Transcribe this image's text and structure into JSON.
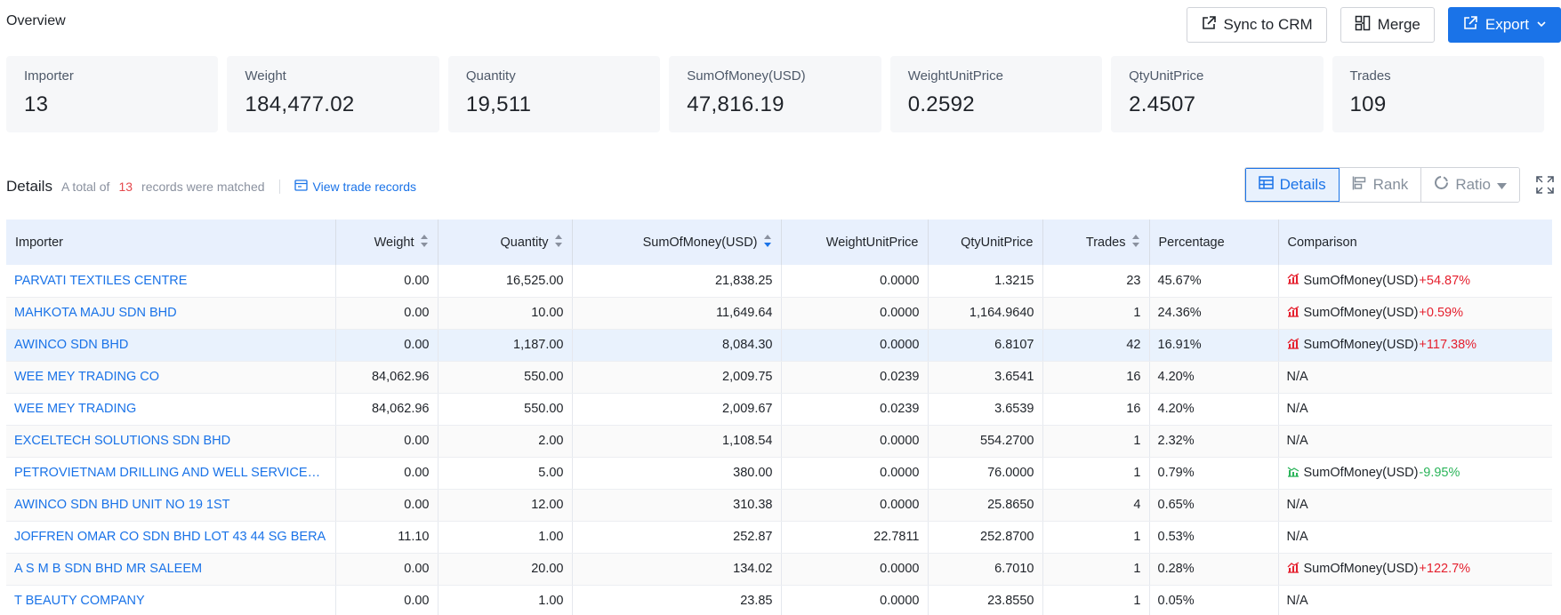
{
  "overview": {
    "title": "Overview",
    "actions": {
      "sync": "Sync to CRM",
      "merge": "Merge",
      "export": "Export"
    }
  },
  "stats": [
    {
      "label": "Importer",
      "value": "13"
    },
    {
      "label": "Weight",
      "value": "184,477.02"
    },
    {
      "label": "Quantity",
      "value": "19,511"
    },
    {
      "label": "SumOfMoney(USD)",
      "value": "47,816.19"
    },
    {
      "label": "WeightUnitPrice",
      "value": "0.2592"
    },
    {
      "label": "QtyUnitPrice",
      "value": "2.4507"
    },
    {
      "label": "Trades",
      "value": "109"
    }
  ],
  "details": {
    "title": "Details",
    "prefix": "A total of",
    "count": "13",
    "suffix": "records were matched",
    "view_link": "View trade records",
    "views": {
      "details": "Details",
      "rank": "Rank",
      "ratio": "Ratio"
    }
  },
  "table": {
    "columns": [
      "Importer",
      "Weight",
      "Quantity",
      "SumOfMoney(USD)",
      "WeightUnitPrice",
      "QtyUnitPrice",
      "Trades",
      "Percentage",
      "Comparison"
    ],
    "rows": [
      {
        "importer": "PARVATI TEXTILES CENTRE",
        "weight": "0.00",
        "quantity": "16,525.00",
        "sum": "21,838.25",
        "wup": "0.0000",
        "qup": "1.3215",
        "trades": "23",
        "pct": "45.67%",
        "cmp_label": "SumOfMoney(USD)",
        "cmp_change": "+54.87%",
        "cmp_dir": "up"
      },
      {
        "importer": "MAHKOTA MAJU SDN BHD",
        "weight": "0.00",
        "quantity": "10.00",
        "sum": "11,649.64",
        "wup": "0.0000",
        "qup": "1,164.9640",
        "trades": "1",
        "pct": "24.36%",
        "cmp_label": "SumOfMoney(USD)",
        "cmp_change": "+0.59%",
        "cmp_dir": "up"
      },
      {
        "importer": "AWINCO SDN BHD",
        "weight": "0.00",
        "quantity": "1,187.00",
        "sum": "8,084.30",
        "wup": "0.0000",
        "qup": "6.8107",
        "trades": "42",
        "pct": "16.91%",
        "cmp_label": "SumOfMoney(USD)",
        "cmp_change": "+117.38%",
        "cmp_dir": "up"
      },
      {
        "importer": "WEE MEY TRADING CO",
        "weight": "84,062.96",
        "quantity": "550.00",
        "sum": "2,009.75",
        "wup": "0.0239",
        "qup": "3.6541",
        "trades": "16",
        "pct": "4.20%",
        "cmp_na": "N/A"
      },
      {
        "importer": "WEE MEY TRADING",
        "weight": "84,062.96",
        "quantity": "550.00",
        "sum": "2,009.67",
        "wup": "0.0239",
        "qup": "3.6539",
        "trades": "16",
        "pct": "4.20%",
        "cmp_na": "N/A"
      },
      {
        "importer": "EXCELTECH SOLUTIONS SDN BHD",
        "weight": "0.00",
        "quantity": "2.00",
        "sum": "1,108.54",
        "wup": "0.0000",
        "qup": "554.2700",
        "trades": "1",
        "pct": "2.32%",
        "cmp_na": "N/A"
      },
      {
        "importer": "PETROVIETNAM DRILLING AND WELL SERVICES C...",
        "weight": "0.00",
        "quantity": "5.00",
        "sum": "380.00",
        "wup": "0.0000",
        "qup": "76.0000",
        "trades": "1",
        "pct": "0.79%",
        "cmp_label": "SumOfMoney(USD)",
        "cmp_change": "-9.95%",
        "cmp_dir": "down"
      },
      {
        "importer": "AWINCO SDN BHD UNIT NO 19 1ST",
        "weight": "0.00",
        "quantity": "12.00",
        "sum": "310.38",
        "wup": "0.0000",
        "qup": "25.8650",
        "trades": "4",
        "pct": "0.65%",
        "cmp_na": "N/A"
      },
      {
        "importer": "JOFFREN OMAR CO SDN BHD LOT 43 44 SG BERA",
        "weight": "11.10",
        "quantity": "1.00",
        "sum": "252.87",
        "wup": "22.7811",
        "qup": "252.8700",
        "trades": "1",
        "pct": "0.53%",
        "cmp_na": "N/A"
      },
      {
        "importer": "A S M B SDN BHD MR SALEEM",
        "weight": "0.00",
        "quantity": "20.00",
        "sum": "134.02",
        "wup": "0.0000",
        "qup": "6.7010",
        "trades": "1",
        "pct": "0.28%",
        "cmp_label": "SumOfMoney(USD)",
        "cmp_change": "+122.7%",
        "cmp_dir": "up"
      },
      {
        "importer": "T BEAUTY COMPANY",
        "weight": "0.00",
        "quantity": "1.00",
        "sum": "23.85",
        "wup": "0.0000",
        "qup": "23.8550",
        "trades": "1",
        "pct": "0.05%",
        "cmp_na": "N/A"
      }
    ]
  },
  "colors": {
    "accent": "#1a73e8",
    "up": "#e5202e",
    "down": "#2bb45a",
    "count": "#e5484d"
  }
}
